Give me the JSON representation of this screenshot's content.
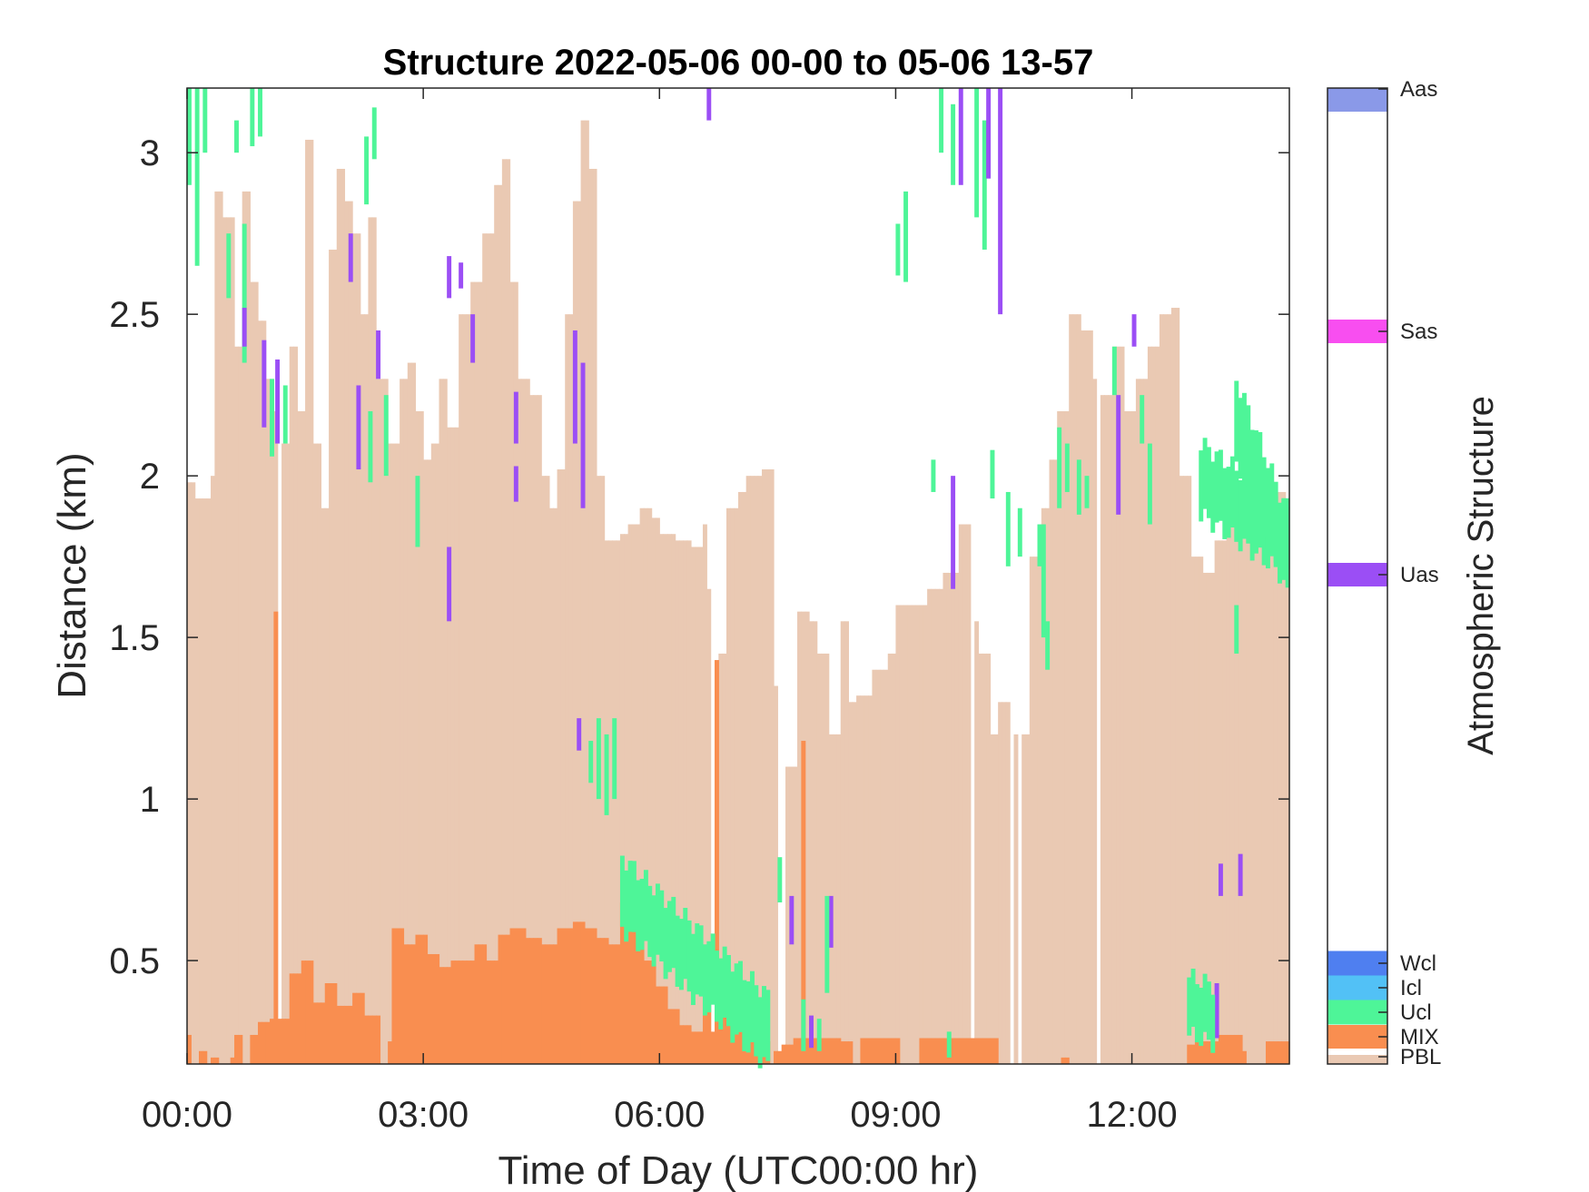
{
  "chart_data": {
    "type": "heatmap",
    "title": "Structure 2022-05-06 00-00 to 05-06 13-57",
    "xlabel": "Time of Day (UTC00:00 hr)",
    "ylabel": "Distance (km)",
    "xlim_hours": [
      0,
      14
    ],
    "ylim_km": [
      0.18,
      3.2
    ],
    "x_ticks": [
      {
        "value": 0,
        "label": "00:00"
      },
      {
        "value": 3,
        "label": "03:00"
      },
      {
        "value": 6,
        "label": "06:00"
      },
      {
        "value": 9,
        "label": "09:00"
      },
      {
        "value": 12,
        "label": "12:00"
      }
    ],
    "y_ticks": [
      {
        "value": 0.5,
        "label": "0.5"
      },
      {
        "value": 1,
        "label": "1"
      },
      {
        "value": 1.5,
        "label": "1.5"
      },
      {
        "value": 2,
        "label": "2"
      },
      {
        "value": 2.5,
        "label": "2.5"
      },
      {
        "value": 3,
        "label": "3"
      }
    ],
    "colorbar": {
      "label": "Atmospheric Structure",
      "classes": [
        {
          "label": "PBL",
          "color": "#eac9b3"
        },
        {
          "label": "MIX",
          "color": "#f98e50"
        },
        {
          "label": "Ucl",
          "color": "#4ef598"
        },
        {
          "label": "Icl",
          "color": "#52c1f6"
        },
        {
          "label": "Wcl",
          "color": "#4f7ff0"
        },
        {
          "label": "Uas",
          "color": "#9b4ef5"
        },
        {
          "label": "Sas",
          "color": "#f84ef0"
        },
        {
          "label": "Aas",
          "color": "#8a99e8"
        }
      ]
    },
    "pbl_top_km": [
      [
        0.0,
        1.98
      ],
      [
        0.1,
        1.93
      ],
      [
        0.3,
        2.0
      ],
      [
        0.35,
        2.88
      ],
      [
        0.45,
        2.8
      ],
      [
        0.6,
        2.4
      ],
      [
        0.7,
        2.88
      ],
      [
        0.8,
        2.6
      ],
      [
        0.9,
        2.48
      ],
      [
        1.0,
        2.3
      ],
      [
        1.1,
        2.2
      ],
      [
        1.2,
        2.1
      ],
      [
        1.3,
        2.4
      ],
      [
        1.4,
        2.2
      ],
      [
        1.5,
        3.04
      ],
      [
        1.6,
        2.1
      ],
      [
        1.7,
        1.9
      ],
      [
        1.8,
        2.7
      ],
      [
        1.9,
        2.95
      ],
      [
        2.0,
        2.85
      ],
      [
        2.1,
        2.75
      ],
      [
        2.2,
        2.5
      ],
      [
        2.3,
        2.8
      ],
      [
        2.4,
        2.3
      ],
      [
        2.55,
        2.1
      ],
      [
        2.7,
        2.3
      ],
      [
        2.8,
        2.35
      ],
      [
        2.9,
        2.2
      ],
      [
        3.0,
        2.05
      ],
      [
        3.1,
        2.1
      ],
      [
        3.2,
        2.3
      ],
      [
        3.3,
        2.15
      ],
      [
        3.45,
        2.5
      ],
      [
        3.6,
        2.6
      ],
      [
        3.75,
        2.75
      ],
      [
        3.9,
        2.9
      ],
      [
        4.0,
        2.98
      ],
      [
        4.1,
        2.6
      ],
      [
        4.2,
        2.3
      ],
      [
        4.35,
        2.25
      ],
      [
        4.5,
        2.0
      ],
      [
        4.6,
        1.9
      ],
      [
        4.7,
        2.02
      ],
      [
        4.8,
        2.5
      ],
      [
        4.9,
        2.85
      ],
      [
        5.0,
        3.1
      ],
      [
        5.1,
        2.95
      ],
      [
        5.2,
        2.0
      ],
      [
        5.3,
        1.8
      ],
      [
        5.5,
        1.82
      ],
      [
        5.6,
        1.85
      ],
      [
        5.75,
        1.9
      ],
      [
        5.9,
        1.87
      ],
      [
        6.0,
        1.82
      ],
      [
        6.2,
        1.8
      ],
      [
        6.4,
        1.78
      ],
      [
        6.55,
        1.85
      ],
      [
        6.6,
        1.65
      ],
      [
        6.75,
        1.45
      ],
      [
        6.85,
        1.9
      ],
      [
        7.0,
        1.95
      ],
      [
        7.1,
        2.0
      ],
      [
        7.3,
        2.02
      ],
      [
        7.45,
        1.35
      ],
      [
        7.6,
        1.1
      ],
      [
        7.75,
        1.58
      ],
      [
        7.9,
        1.55
      ],
      [
        8.0,
        1.45
      ],
      [
        8.15,
        1.2
      ],
      [
        8.3,
        1.55
      ],
      [
        8.4,
        1.3
      ],
      [
        8.5,
        1.32
      ],
      [
        8.7,
        1.4
      ],
      [
        8.9,
        1.45
      ],
      [
        9.0,
        1.6
      ],
      [
        9.2,
        1.6
      ],
      [
        9.4,
        1.65
      ],
      [
        9.6,
        1.7
      ],
      [
        9.8,
        1.85
      ],
      [
        9.95,
        1.55
      ],
      [
        10.05,
        1.45
      ],
      [
        10.2,
        1.2
      ],
      [
        10.3,
        1.3
      ],
      [
        10.5,
        1.2
      ],
      [
        10.7,
        1.75
      ],
      [
        10.85,
        1.9
      ],
      [
        10.95,
        2.05
      ],
      [
        11.05,
        2.2
      ],
      [
        11.2,
        2.5
      ],
      [
        11.35,
        2.45
      ],
      [
        11.5,
        2.3
      ],
      [
        11.6,
        2.25
      ],
      [
        11.75,
        2.4
      ],
      [
        11.9,
        2.2
      ],
      [
        12.05,
        2.3
      ],
      [
        12.2,
        2.4
      ],
      [
        12.35,
        2.5
      ],
      [
        12.5,
        2.52
      ],
      [
        12.6,
        2.0
      ],
      [
        12.75,
        1.75
      ],
      [
        12.9,
        1.7
      ],
      [
        13.05,
        1.8
      ],
      [
        13.2,
        1.85
      ],
      [
        13.4,
        1.9
      ],
      [
        13.6,
        1.8
      ],
      [
        13.8,
        1.95
      ],
      [
        13.95,
        1.85
      ],
      [
        14.0,
        1.85
      ]
    ],
    "mix_top_km": [
      [
        0.0,
        0.27
      ],
      [
        0.15,
        0.22
      ],
      [
        0.3,
        0.2
      ],
      [
        0.6,
        0.27
      ],
      [
        0.9,
        0.31
      ],
      [
        1.05,
        0.32
      ],
      [
        1.1,
        1.58
      ],
      [
        1.15,
        0.32
      ],
      [
        1.3,
        0.46
      ],
      [
        1.45,
        0.5
      ],
      [
        1.6,
        0.37
      ],
      [
        1.75,
        0.43
      ],
      [
        1.9,
        0.36
      ],
      [
        2.1,
        0.4
      ],
      [
        2.25,
        0.33
      ],
      [
        2.45,
        0.25
      ],
      [
        2.6,
        0.6
      ],
      [
        2.75,
        0.55
      ],
      [
        2.9,
        0.58
      ],
      [
        3.05,
        0.52
      ],
      [
        3.2,
        0.48
      ],
      [
        3.35,
        0.5
      ],
      [
        3.5,
        0.5
      ],
      [
        3.65,
        0.55
      ],
      [
        3.8,
        0.5
      ],
      [
        3.95,
        0.58
      ],
      [
        4.1,
        0.6
      ],
      [
        4.3,
        0.57
      ],
      [
        4.5,
        0.55
      ],
      [
        4.7,
        0.6
      ],
      [
        4.9,
        0.62
      ],
      [
        5.05,
        0.6
      ],
      [
        5.2,
        0.57
      ],
      [
        5.35,
        0.55
      ],
      [
        5.5,
        0.68
      ],
      [
        5.65,
        0.6
      ],
      [
        5.8,
        0.5
      ],
      [
        5.95,
        0.42
      ],
      [
        6.1,
        0.35
      ],
      [
        6.25,
        0.3
      ],
      [
        6.4,
        0.28
      ],
      [
        6.55,
        0.38
      ],
      [
        6.65,
        0.28
      ],
      [
        6.7,
        1.43
      ],
      [
        6.75,
        0.4
      ],
      [
        6.9,
        0.34
      ],
      [
        7.05,
        0.3
      ],
      [
        7.2,
        0.25
      ],
      [
        7.4,
        0.22
      ],
      [
        7.55,
        0.24
      ],
      [
        7.7,
        0.26
      ],
      [
        7.8,
        1.18
      ],
      [
        7.85,
        0.26
      ],
      [
        8.0,
        0.26
      ],
      [
        8.3,
        0.25
      ],
      [
        8.5,
        0.26
      ],
      [
        9.0,
        0.26
      ],
      [
        9.5,
        0.26
      ],
      [
        10.0,
        0.26
      ],
      [
        10.3,
        0.24
      ],
      [
        10.5,
        0.2
      ],
      [
        11.0,
        0.2
      ],
      [
        11.5,
        0.23
      ],
      [
        12.0,
        0.22
      ],
      [
        12.5,
        0.24
      ],
      [
        12.8,
        0.25
      ],
      [
        13.1,
        0.27
      ],
      [
        13.4,
        0.22
      ],
      [
        13.7,
        0.25
      ],
      [
        14.0,
        0.25
      ]
    ],
    "mix_gaps_hours": [
      [
        0.05,
        0.12
      ],
      [
        0.22,
        0.28
      ],
      [
        0.38,
        0.52
      ],
      [
        0.7,
        0.78
      ],
      [
        2.4,
        2.5
      ],
      [
        7.35,
        7.42
      ],
      [
        8.4,
        8.5
      ],
      [
        9.0,
        9.25
      ],
      [
        10.3,
        11.1
      ],
      [
        11.2,
        12.7
      ],
      [
        13.45,
        13.7
      ]
    ],
    "pbl_gaps_hours": [
      [
        1.12,
        1.18
      ],
      [
        6.62,
        6.7
      ],
      [
        7.45,
        7.55
      ],
      [
        9.95,
        10.0
      ],
      [
        10.45,
        10.5
      ],
      [
        10.55,
        10.6
      ],
      [
        11.55,
        11.6
      ],
      [
        12.08,
        12.1
      ]
    ],
    "cloud_segments": [
      {
        "c": "Ucl",
        "x": 0.0,
        "y0": 2.9,
        "y1": 3.2
      },
      {
        "c": "Ucl",
        "x": 0.1,
        "y0": 2.65,
        "y1": 3.2
      },
      {
        "c": "Ucl",
        "x": 0.2,
        "y0": 3.0,
        "y1": 3.2
      },
      {
        "c": "Ucl",
        "x": 0.6,
        "y0": 3.0,
        "y1": 3.1
      },
      {
        "c": "Ucl",
        "x": 0.5,
        "y0": 2.55,
        "y1": 2.75
      },
      {
        "c": "Ucl",
        "x": 0.7,
        "y0": 2.35,
        "y1": 2.78
      },
      {
        "c": "Ucl",
        "x": 0.8,
        "y0": 3.02,
        "y1": 3.2
      },
      {
        "c": "Ucl",
        "x": 0.9,
        "y0": 3.05,
        "y1": 3.2
      },
      {
        "c": "Uas",
        "x": 0.7,
        "y0": 2.4,
        "y1": 2.52
      },
      {
        "c": "Uas",
        "x": 0.95,
        "y0": 2.15,
        "y1": 2.42
      },
      {
        "c": "Ucl",
        "x": 1.05,
        "y0": 2.06,
        "y1": 2.3
      },
      {
        "c": "Uas",
        "x": 1.12,
        "y0": 2.1,
        "y1": 2.36
      },
      {
        "c": "Ucl",
        "x": 1.22,
        "y0": 2.1,
        "y1": 2.28
      },
      {
        "c": "Uas",
        "x": 2.05,
        "y0": 2.6,
        "y1": 2.75
      },
      {
        "c": "Uas",
        "x": 2.15,
        "y0": 2.02,
        "y1": 2.28
      },
      {
        "c": "Ucl",
        "x": 2.25,
        "y0": 2.84,
        "y1": 3.05
      },
      {
        "c": "Ucl",
        "x": 2.35,
        "y0": 2.98,
        "y1": 3.14
      },
      {
        "c": "Ucl",
        "x": 2.3,
        "y0": 1.98,
        "y1": 2.2
      },
      {
        "c": "Uas",
        "x": 2.4,
        "y0": 2.3,
        "y1": 2.45
      },
      {
        "c": "Ucl",
        "x": 2.5,
        "y0": 2.0,
        "y1": 2.25
      },
      {
        "c": "Ucl",
        "x": 2.9,
        "y0": 1.78,
        "y1": 2.0
      },
      {
        "c": "Uas",
        "x": 3.3,
        "y0": 1.55,
        "y1": 1.78
      },
      {
        "c": "Uas",
        "x": 3.3,
        "y0": 2.55,
        "y1": 2.68
      },
      {
        "c": "Uas",
        "x": 3.45,
        "y0": 2.58,
        "y1": 2.66
      },
      {
        "c": "Uas",
        "x": 3.6,
        "y0": 2.35,
        "y1": 2.5
      },
      {
        "c": "Uas",
        "x": 4.15,
        "y0": 2.1,
        "y1": 2.26
      },
      {
        "c": "Uas",
        "x": 4.15,
        "y0": 1.92,
        "y1": 2.03
      },
      {
        "c": "Uas",
        "x": 4.9,
        "y0": 2.1,
        "y1": 2.45
      },
      {
        "c": "Uas",
        "x": 5.0,
        "y0": 1.9,
        "y1": 2.35
      },
      {
        "c": "Uas",
        "x": 4.95,
        "y0": 1.15,
        "y1": 1.25
      },
      {
        "c": "Ucl",
        "x": 5.1,
        "y0": 1.05,
        "y1": 1.18
      },
      {
        "c": "Ucl",
        "x": 5.2,
        "y0": 1.0,
        "y1": 1.25
      },
      {
        "c": "Ucl",
        "x": 5.3,
        "y0": 0.95,
        "y1": 1.2
      },
      {
        "c": "Ucl",
        "x": 5.4,
        "y0": 1.0,
        "y1": 1.25
      },
      {
        "c": "Uas",
        "x": 6.6,
        "y0": 3.1,
        "y1": 3.2
      },
      {
        "c": "Uas",
        "x": 7.65,
        "y0": 0.55,
        "y1": 0.7
      },
      {
        "c": "Uas",
        "x": 8.15,
        "y0": 0.54,
        "y1": 0.7
      },
      {
        "c": "Ucl",
        "x": 7.5,
        "y0": 0.68,
        "y1": 0.82
      },
      {
        "c": "Ucl",
        "x": 8.1,
        "y0": 0.4,
        "y1": 0.7
      },
      {
        "c": "Ucl",
        "x": 7.8,
        "y0": 0.22,
        "y1": 0.38
      },
      {
        "c": "Ucl",
        "x": 8.0,
        "y0": 0.22,
        "y1": 0.32
      },
      {
        "c": "Uas",
        "x": 7.9,
        "y0": 0.23,
        "y1": 0.33
      },
      {
        "c": "Ucl",
        "x": 9.1,
        "y0": 2.6,
        "y1": 2.88
      },
      {
        "c": "Ucl",
        "x": 9.0,
        "y0": 2.62,
        "y1": 2.78
      },
      {
        "c": "Ucl",
        "x": 9.55,
        "y0": 3.0,
        "y1": 3.2
      },
      {
        "c": "Ucl",
        "x": 9.7,
        "y0": 2.9,
        "y1": 3.15
      },
      {
        "c": "Uas",
        "x": 9.8,
        "y0": 2.9,
        "y1": 3.2
      },
      {
        "c": "Ucl",
        "x": 10.0,
        "y0": 2.8,
        "y1": 3.2
      },
      {
        "c": "Ucl",
        "x": 10.1,
        "y0": 2.7,
        "y1": 3.1
      },
      {
        "c": "Uas",
        "x": 10.15,
        "y0": 2.92,
        "y1": 3.2
      },
      {
        "c": "Uas",
        "x": 10.3,
        "y0": 2.5,
        "y1": 3.2
      },
      {
        "c": "Uas",
        "x": 9.7,
        "y0": 1.65,
        "y1": 2.0
      },
      {
        "c": "Ucl",
        "x": 9.45,
        "y0": 1.95,
        "y1": 2.05
      },
      {
        "c": "Ucl",
        "x": 10.2,
        "y0": 1.93,
        "y1": 2.08
      },
      {
        "c": "Ucl",
        "x": 10.4,
        "y0": 1.72,
        "y1": 1.95
      },
      {
        "c": "Ucl",
        "x": 10.55,
        "y0": 1.75,
        "y1": 1.9
      },
      {
        "c": "Ucl",
        "x": 10.8,
        "y0": 1.72,
        "y1": 1.85
      },
      {
        "c": "Ucl",
        "x": 10.9,
        "y0": 1.4,
        "y1": 1.55
      },
      {
        "c": "Ucl",
        "x": 10.85,
        "y0": 1.5,
        "y1": 1.85
      },
      {
        "c": "Ucl",
        "x": 11.05,
        "y0": 1.9,
        "y1": 2.15
      },
      {
        "c": "Ucl",
        "x": 11.15,
        "y0": 1.95,
        "y1": 2.1
      },
      {
        "c": "Ucl",
        "x": 11.3,
        "y0": 1.88,
        "y1": 2.05
      },
      {
        "c": "Ucl",
        "x": 11.4,
        "y0": 1.9,
        "y1": 2.0
      },
      {
        "c": "Ucl",
        "x": 11.75,
        "y0": 2.25,
        "y1": 2.4
      },
      {
        "c": "Uas",
        "x": 11.8,
        "y0": 1.88,
        "y1": 2.25
      },
      {
        "c": "Uas",
        "x": 12.0,
        "y0": 2.4,
        "y1": 2.5
      },
      {
        "c": "Ucl",
        "x": 12.1,
        "y0": 2.1,
        "y1": 2.25
      },
      {
        "c": "Ucl",
        "x": 12.2,
        "y0": 1.85,
        "y1": 2.1
      },
      {
        "c": "Ucl",
        "x": 9.65,
        "y0": 0.2,
        "y1": 0.28
      },
      {
        "c": "Uas",
        "x": 13.1,
        "y0": 0.7,
        "y1": 0.8
      },
      {
        "c": "Uas",
        "x": 13.35,
        "y0": 0.7,
        "y1": 0.83
      },
      {
        "c": "Uas",
        "x": 13.05,
        "y0": 0.26,
        "y1": 0.43
      },
      {
        "c": "Ucl",
        "x": 13.3,
        "y0": 1.45,
        "y1": 1.6
      }
    ],
    "cloud_bands": [
      {
        "c": "Ucl",
        "x0": 5.5,
        "x1": 7.4,
        "top0": 0.82,
        "top1": 0.38,
        "thick": 0.22
      },
      {
        "c": "Ucl",
        "x0": 12.7,
        "x1": 13.05,
        "top0": 0.45,
        "top1": 0.42,
        "thick": 0.18
      },
      {
        "c": "Ucl",
        "x0": 12.85,
        "x1": 14.0,
        "top0": 2.1,
        "top1": 1.9,
        "thick": 0.22
      },
      {
        "c": "Ucl",
        "x0": 13.3,
        "x1": 14.0,
        "top0": 2.3,
        "top1": 1.85,
        "thick": 0.25
      }
    ]
  }
}
